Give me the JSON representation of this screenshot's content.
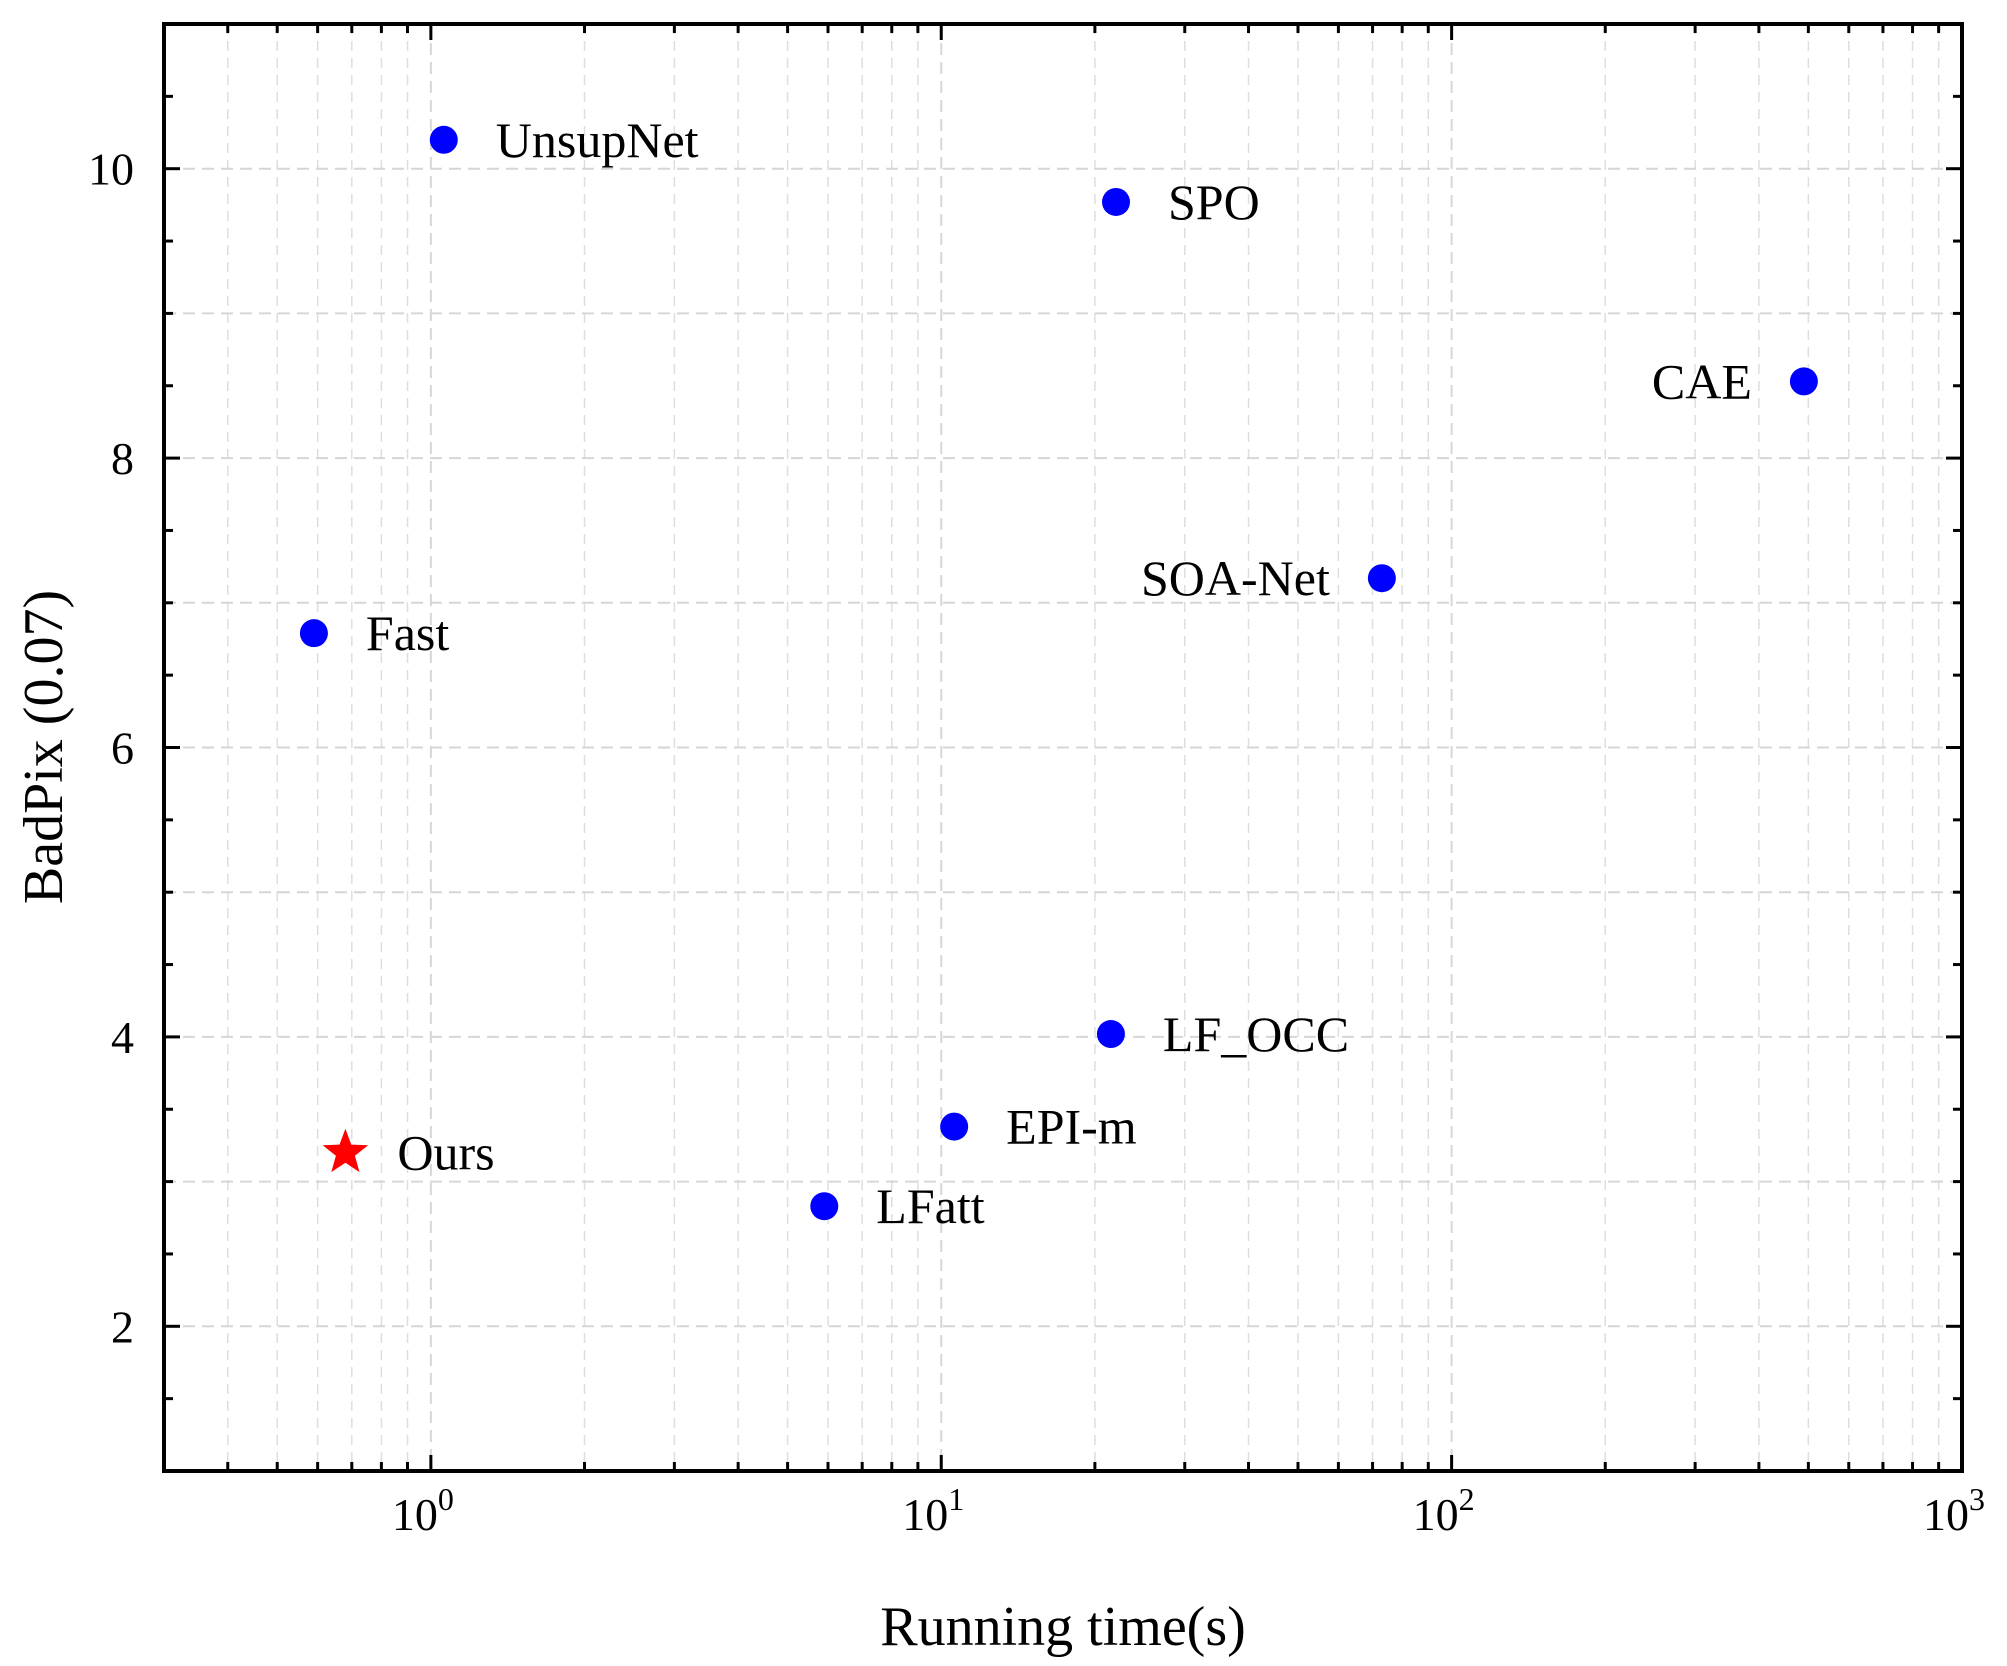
{
  "chart_data": {
    "type": "scatter",
    "title": "",
    "xlabel": "Running time(s)",
    "ylabel": "BadPix (0.07)",
    "xscale": "log",
    "xlim": [
      0.3,
      1000
    ],
    "ylim": [
      1,
      11
    ],
    "x_ticks": [
      {
        "value": 1,
        "base": "10",
        "exp": "0"
      },
      {
        "value": 10,
        "base": "10",
        "exp": "1"
      },
      {
        "value": 100,
        "base": "10",
        "exp": "2"
      },
      {
        "value": 1000,
        "base": "10",
        "exp": "3"
      }
    ],
    "y_ticks": [
      {
        "value": 2,
        "label": "2"
      },
      {
        "value": 4,
        "label": "4"
      },
      {
        "value": 6,
        "label": "6"
      },
      {
        "value": 8,
        "label": "8"
      },
      {
        "value": 10,
        "label": "10"
      }
    ],
    "grid": true,
    "points": [
      {
        "label": "UnsupNet",
        "x": 1.06,
        "y": 10.2,
        "marker": "circle",
        "color": "#0000ff",
        "label_side": "right"
      },
      {
        "label": "SPO",
        "x": 22,
        "y": 9.77,
        "marker": "circle",
        "color": "#0000ff",
        "label_side": "right"
      },
      {
        "label": "CAE",
        "x": 490,
        "y": 8.53,
        "marker": "circle",
        "color": "#0000ff",
        "label_side": "left"
      },
      {
        "label": "SOA-Net",
        "x": 73,
        "y": 7.17,
        "marker": "circle",
        "color": "#0000ff",
        "label_side": "left"
      },
      {
        "label": "Fast",
        "x": 0.59,
        "y": 6.79,
        "marker": "circle",
        "color": "#0000ff",
        "label_side": "right"
      },
      {
        "label": "LF_OCC",
        "x": 21.5,
        "y": 4.02,
        "marker": "circle",
        "color": "#0000ff",
        "label_side": "right"
      },
      {
        "label": "EPI-m",
        "x": 10.6,
        "y": 3.38,
        "marker": "circle",
        "color": "#0000ff",
        "label_side": "right"
      },
      {
        "label": "Ours",
        "x": 0.68,
        "y": 3.2,
        "marker": "star",
        "color": "#ff0000",
        "label_side": "right"
      },
      {
        "label": "LFatt",
        "x": 5.9,
        "y": 2.83,
        "marker": "circle",
        "color": "#0000ff",
        "label_side": "right"
      }
    ]
  }
}
